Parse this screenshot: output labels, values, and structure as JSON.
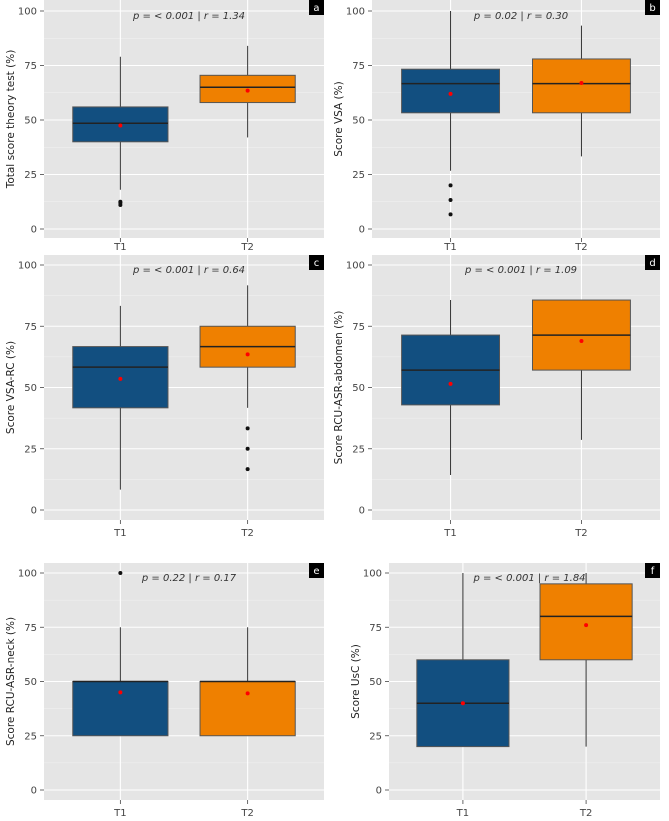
{
  "colors": {
    "T1": "#124f80",
    "T2": "#ef8000",
    "mean": "#ff0000",
    "panel_bg": "#e5e5e5"
  },
  "chart_data": [
    {
      "type": "box",
      "panel": "a",
      "ylabel": "Total score theory test (%)",
      "annotation": "p = < 0.001 | r = 1.34",
      "categories": [
        "T1",
        "T2"
      ],
      "ylim": [
        0,
        100
      ],
      "yticks": [
        0,
        25,
        50,
        75,
        100
      ],
      "boxes": [
        {
          "lower": 18,
          "q1": 40,
          "median": 48.5,
          "q3": 56,
          "upper": 79,
          "mean": 47.5,
          "outliers": [
            11,
            12,
            12.5
          ]
        },
        {
          "lower": 42,
          "q1": 58,
          "median": 65,
          "q3": 70.5,
          "upper": 84,
          "mean": 63.5,
          "outliers": []
        }
      ]
    },
    {
      "type": "box",
      "panel": "b",
      "ylabel": "Score VSA (%)",
      "annotation": "p = 0.02 | r = 0.30",
      "categories": [
        "T1",
        "T2"
      ],
      "ylim": [
        0,
        100
      ],
      "yticks": [
        0,
        25,
        50,
        75,
        100
      ],
      "boxes": [
        {
          "lower": 26.7,
          "q1": 53.3,
          "median": 66.7,
          "q3": 73.3,
          "upper": 100,
          "mean": 62,
          "outliers": [
            6.7,
            13.3,
            20
          ]
        },
        {
          "lower": 33.3,
          "q1": 53.3,
          "median": 66.7,
          "q3": 78,
          "upper": 93.3,
          "mean": 67,
          "outliers": []
        }
      ]
    },
    {
      "type": "box",
      "panel": "c",
      "ylabel": "Score VSA-RC (%)",
      "annotation": "p = < 0.001 | r = 0.64",
      "categories": [
        "T1",
        "T2"
      ],
      "ylim": [
        0,
        100
      ],
      "yticks": [
        0,
        25,
        50,
        75,
        100
      ],
      "boxes": [
        {
          "lower": 8.3,
          "q1": 41.7,
          "median": 58.3,
          "q3": 66.7,
          "upper": 83.3,
          "mean": 53.5,
          "outliers": []
        },
        {
          "lower": 41.7,
          "q1": 58.3,
          "median": 66.7,
          "q3": 75,
          "upper": 91.7,
          "mean": 63.5,
          "outliers": [
            16.7,
            25,
            33.3
          ]
        }
      ]
    },
    {
      "type": "box",
      "panel": "d",
      "ylabel": "Score RCU-ASR-abdomen (%)",
      "annotation": "p = < 0.001 | r = 1.09",
      "categories": [
        "T1",
        "T2"
      ],
      "ylim": [
        0,
        100
      ],
      "yticks": [
        0,
        25,
        50,
        75,
        100
      ],
      "boxes": [
        {
          "lower": 14.3,
          "q1": 42.9,
          "median": 57.1,
          "q3": 71.4,
          "upper": 85.7,
          "mean": 51.5,
          "outliers": []
        },
        {
          "lower": 28.6,
          "q1": 57.1,
          "median": 71.4,
          "q3": 85.7,
          "upper": 85.7,
          "mean": 69,
          "outliers": []
        }
      ]
    },
    {
      "type": "box",
      "panel": "e",
      "ylabel": "Score RCU-ASR-neck (%)",
      "annotation": "p = 0.22 | r = 0.17",
      "categories": [
        "T1",
        "T2"
      ],
      "ylim": [
        0,
        100
      ],
      "yticks": [
        0,
        25,
        50,
        75,
        100
      ],
      "boxes": [
        {
          "lower": 25,
          "q1": 25,
          "median": 50,
          "q3": 50,
          "upper": 75,
          "mean": 45,
          "outliers": [
            100
          ]
        },
        {
          "lower": 25,
          "q1": 25,
          "median": 50,
          "q3": 50,
          "upper": 75,
          "mean": 44.5,
          "outliers": []
        }
      ]
    },
    {
      "type": "box",
      "panel": "f",
      "ylabel": "Score UsC (%)",
      "annotation": "p = < 0.001 | r = 1.84",
      "categories": [
        "T1",
        "T2"
      ],
      "ylim": [
        0,
        100
      ],
      "yticks": [
        0,
        25,
        50,
        75,
        100
      ],
      "boxes": [
        {
          "lower": 20,
          "q1": 20,
          "median": 40,
          "q3": 60,
          "upper": 100,
          "mean": 40,
          "outliers": []
        },
        {
          "lower": 20,
          "q1": 60,
          "median": 80,
          "q3": 95,
          "upper": 100,
          "mean": 76,
          "outliers": []
        }
      ]
    }
  ]
}
